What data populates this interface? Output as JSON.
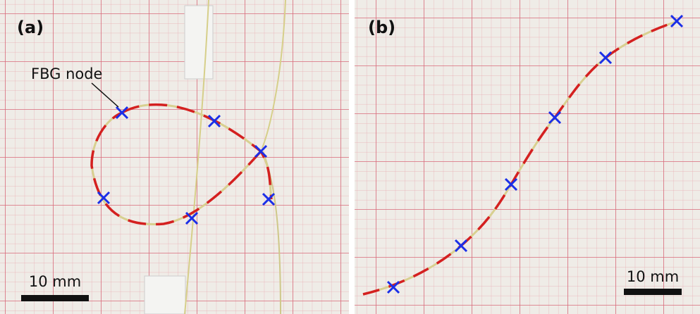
{
  "panels": [
    {
      "label": "(a)",
      "annotation": "FBG node",
      "scale_bar": "10 mm"
    },
    {
      "label": "(b)",
      "scale_bar": "10 mm"
    }
  ]
}
